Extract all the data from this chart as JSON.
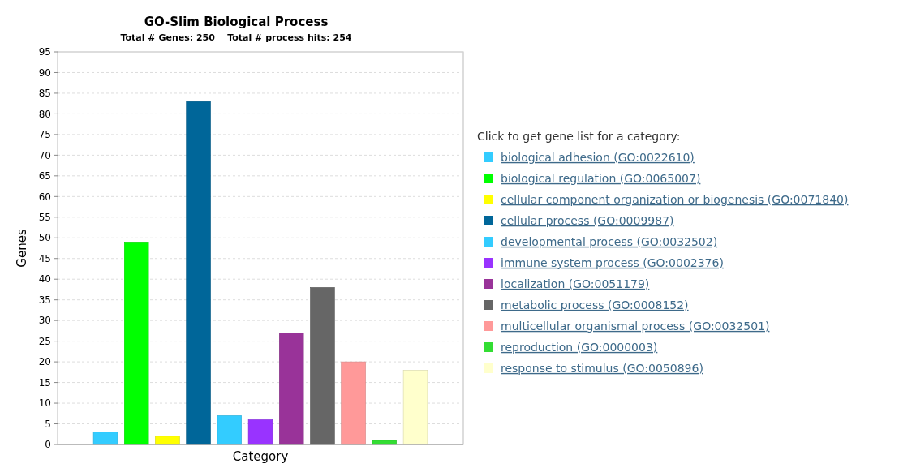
{
  "chart_data": {
    "type": "bar",
    "title": "GO-Slim Biological Process",
    "subtitle": "Total # Genes: 250    Total # process hits: 254",
    "xlabel": "Category",
    "ylabel": "Genes",
    "legend_title": "Click to get gene list for a category:",
    "categories": [
      null
    ],
    "series": [
      {
        "name": "biological adhesion (GO:0022610)",
        "color": "#33ccff",
        "values": [
          3
        ]
      },
      {
        "name": "biological regulation (GO:0065007)",
        "color": "#00ff00",
        "values": [
          49
        ]
      },
      {
        "name": "cellular component organization or biogenesis (GO:0071840)",
        "color": "#ffff00",
        "values": [
          2
        ]
      },
      {
        "name": "cellular process (GO:0009987)",
        "color": "#006699",
        "values": [
          83
        ]
      },
      {
        "name": "developmental process (GO:0032502)",
        "color": "#33ccff",
        "values": [
          7
        ]
      },
      {
        "name": "immune system process (GO:0002376)",
        "color": "#9933ff",
        "values": [
          6
        ]
      },
      {
        "name": "localization (GO:0051179)",
        "color": "#993399",
        "values": [
          27
        ]
      },
      {
        "name": "metabolic process (GO:0008152)",
        "color": "#666666",
        "values": [
          38
        ]
      },
      {
        "name": "multicellular organismal process (GO:0032501)",
        "color": "#ff9999",
        "values": [
          20
        ]
      },
      {
        "name": "reproduction (GO:0000003)",
        "color": "#33dd33",
        "values": [
          1
        ]
      },
      {
        "name": "response to stimulus (GO:0050896)",
        "color": "#ffffcc",
        "values": [
          18
        ]
      }
    ],
    "ylim": [
      0,
      95
    ],
    "yticks": [
      0,
      5,
      10,
      15,
      20,
      25,
      30,
      35,
      40,
      45,
      50,
      55,
      60,
      65,
      70,
      75,
      80,
      85,
      90,
      95
    ],
    "grid": "y",
    "legend": "right"
  }
}
